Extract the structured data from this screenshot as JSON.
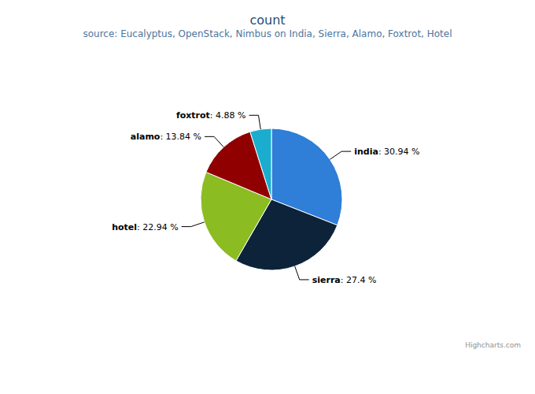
{
  "chart_data": {
    "type": "pie",
    "title": "count",
    "subtitle": "source: Eucalyptus, OpenStack, Nimbus on India, Sierra, Alamo, Foxtrot, Hotel",
    "categories": [
      "india",
      "sierra",
      "hotel",
      "alamo",
      "foxtrot"
    ],
    "values": [
      30.94,
      27.4,
      22.94,
      13.84,
      4.88
    ],
    "value_labels": [
      "30.94 %",
      "27.4 %",
      "22.94 %",
      "13.84 %",
      "4.88 %"
    ],
    "colors": [
      "#2f7ed8",
      "#0d233a",
      "#8bbc21",
      "#910000",
      "#1aadce"
    ],
    "data_labels": true,
    "annotations": [
      "Highcharts.com"
    ]
  }
}
